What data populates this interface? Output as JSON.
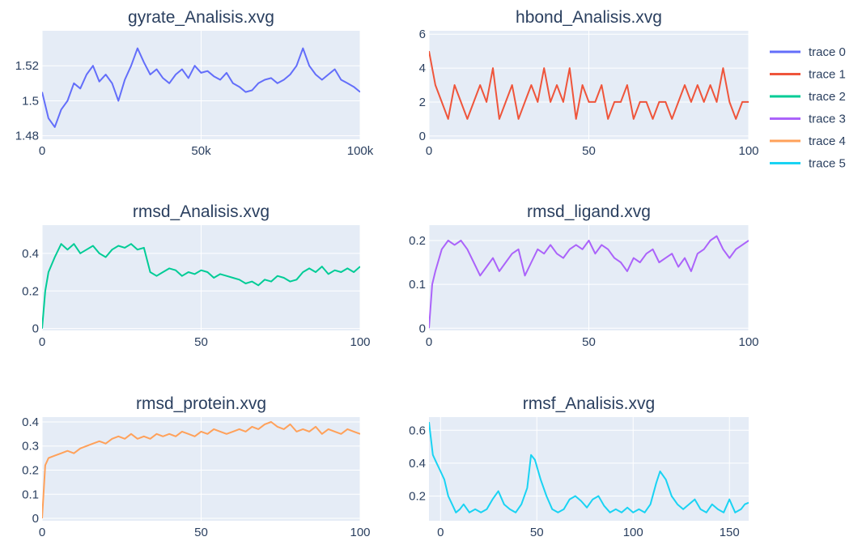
{
  "chart_data": [
    {
      "type": "line",
      "title": "gyrate_Analisis.xvg",
      "series_name": "trace 0",
      "color": "#636efa",
      "xlim": [
        0,
        100000
      ],
      "ylim": [
        1.478,
        1.54
      ],
      "xticks": [
        0,
        50000,
        100000
      ],
      "xtick_labels": [
        "0",
        "50k",
        "100k"
      ],
      "yticks": [
        1.48,
        1.5,
        1.52
      ],
      "ytick_labels": [
        "1.48",
        "1.5",
        "1.52"
      ],
      "x": [
        0,
        2000,
        4000,
        6000,
        8000,
        10000,
        12000,
        14000,
        16000,
        18000,
        20000,
        22000,
        24000,
        26000,
        28000,
        30000,
        32000,
        34000,
        36000,
        38000,
        40000,
        42000,
        44000,
        46000,
        48000,
        50000,
        52000,
        54000,
        56000,
        58000,
        60000,
        62000,
        64000,
        66000,
        68000,
        70000,
        72000,
        74000,
        76000,
        78000,
        80000,
        82000,
        84000,
        86000,
        88000,
        90000,
        92000,
        94000,
        96000,
        98000,
        100000
      ],
      "y": [
        1.505,
        1.49,
        1.485,
        1.495,
        1.5,
        1.51,
        1.507,
        1.515,
        1.52,
        1.511,
        1.515,
        1.51,
        1.5,
        1.512,
        1.52,
        1.53,
        1.522,
        1.515,
        1.518,
        1.513,
        1.51,
        1.515,
        1.518,
        1.513,
        1.52,
        1.516,
        1.517,
        1.514,
        1.512,
        1.516,
        1.51,
        1.508,
        1.505,
        1.506,
        1.51,
        1.512,
        1.513,
        1.51,
        1.512,
        1.515,
        1.52,
        1.53,
        1.52,
        1.515,
        1.512,
        1.515,
        1.518,
        1.512,
        1.51,
        1.508,
        1.505
      ]
    },
    {
      "type": "line",
      "title": "hbond_Analisis.xvg",
      "series_name": "trace 1",
      "color": "#ef553b",
      "xlim": [
        0,
        100
      ],
      "ylim": [
        -0.2,
        6.2
      ],
      "xticks": [
        0,
        50,
        100
      ],
      "xtick_labels": [
        "0",
        "50",
        "100"
      ],
      "yticks": [
        0,
        2,
        4,
        6
      ],
      "ytick_labels": [
        "0",
        "2",
        "4",
        "6"
      ],
      "x": [
        0,
        2,
        4,
        6,
        8,
        10,
        12,
        14,
        16,
        18,
        20,
        22,
        24,
        26,
        28,
        30,
        32,
        34,
        36,
        38,
        40,
        42,
        44,
        46,
        48,
        50,
        52,
        54,
        56,
        58,
        60,
        62,
        64,
        66,
        68,
        70,
        72,
        74,
        76,
        78,
        80,
        82,
        84,
        86,
        88,
        90,
        92,
        94,
        96,
        98,
        100
      ],
      "y": [
        5,
        3,
        2,
        1,
        3,
        2,
        1,
        2,
        3,
        2,
        4,
        1,
        2,
        3,
        1,
        2,
        3,
        2,
        4,
        2,
        3,
        2,
        4,
        1,
        3,
        2,
        2,
        3,
        1,
        2,
        2,
        3,
        1,
        2,
        2,
        1,
        2,
        2,
        1,
        2,
        3,
        2,
        3,
        2,
        3,
        2,
        4,
        2,
        1,
        2,
        2
      ]
    },
    {
      "type": "line",
      "title": "rmsd_Analisis.xvg",
      "series_name": "trace 2",
      "color": "#00cc96",
      "xlim": [
        0,
        100
      ],
      "ylim": [
        -0.01,
        0.55
      ],
      "xticks": [
        0,
        50,
        100
      ],
      "xtick_labels": [
        "0",
        "50",
        "100"
      ],
      "yticks": [
        0,
        0.2,
        0.4
      ],
      "ytick_labels": [
        "0",
        "0.2",
        "0.4"
      ],
      "x": [
        0,
        1,
        2,
        4,
        6,
        8,
        10,
        12,
        14,
        16,
        18,
        20,
        22,
        24,
        26,
        28,
        30,
        32,
        34,
        36,
        38,
        40,
        42,
        44,
        46,
        48,
        50,
        52,
        54,
        56,
        58,
        60,
        62,
        64,
        66,
        68,
        70,
        72,
        74,
        76,
        78,
        80,
        82,
        84,
        86,
        88,
        90,
        92,
        94,
        96,
        98,
        100
      ],
      "y": [
        0,
        0.2,
        0.3,
        0.38,
        0.45,
        0.42,
        0.45,
        0.4,
        0.42,
        0.44,
        0.4,
        0.38,
        0.42,
        0.44,
        0.43,
        0.45,
        0.42,
        0.43,
        0.3,
        0.28,
        0.3,
        0.32,
        0.31,
        0.28,
        0.3,
        0.29,
        0.31,
        0.3,
        0.27,
        0.29,
        0.28,
        0.27,
        0.26,
        0.24,
        0.25,
        0.23,
        0.26,
        0.25,
        0.28,
        0.27,
        0.25,
        0.26,
        0.3,
        0.32,
        0.3,
        0.33,
        0.29,
        0.31,
        0.3,
        0.32,
        0.3,
        0.33
      ]
    },
    {
      "type": "line",
      "title": "rmsd_ligand.xvg",
      "series_name": "trace 3",
      "color": "#ab63fa",
      "xlim": [
        0,
        100
      ],
      "ylim": [
        -0.005,
        0.235
      ],
      "xticks": [
        0,
        50,
        100
      ],
      "xtick_labels": [
        "0",
        "50",
        "100"
      ],
      "yticks": [
        0,
        0.1,
        0.2
      ],
      "ytick_labels": [
        "0",
        "0.1",
        "0.2"
      ],
      "x": [
        0,
        1,
        2,
        4,
        6,
        8,
        10,
        12,
        14,
        16,
        18,
        20,
        22,
        24,
        26,
        28,
        30,
        32,
        34,
        36,
        38,
        40,
        42,
        44,
        46,
        48,
        50,
        52,
        54,
        56,
        58,
        60,
        62,
        64,
        66,
        68,
        70,
        72,
        74,
        76,
        78,
        80,
        82,
        84,
        86,
        88,
        90,
        92,
        94,
        96,
        98,
        100
      ],
      "y": [
        0,
        0.1,
        0.13,
        0.18,
        0.2,
        0.19,
        0.2,
        0.18,
        0.15,
        0.12,
        0.14,
        0.16,
        0.13,
        0.15,
        0.17,
        0.18,
        0.12,
        0.15,
        0.18,
        0.17,
        0.19,
        0.17,
        0.16,
        0.18,
        0.19,
        0.18,
        0.2,
        0.17,
        0.19,
        0.18,
        0.16,
        0.15,
        0.13,
        0.16,
        0.15,
        0.17,
        0.18,
        0.15,
        0.16,
        0.17,
        0.14,
        0.16,
        0.13,
        0.17,
        0.18,
        0.2,
        0.21,
        0.18,
        0.16,
        0.18,
        0.19,
        0.2
      ]
    },
    {
      "type": "line",
      "title": "rmsd_protein.xvg",
      "series_name": "trace 4",
      "color": "#ffa15a",
      "xlim": [
        0,
        100
      ],
      "ylim": [
        -0.01,
        0.42
      ],
      "xticks": [
        0,
        50,
        100
      ],
      "xtick_labels": [
        "0",
        "50",
        "100"
      ],
      "yticks": [
        0,
        0.1,
        0.2,
        0.3,
        0.4
      ],
      "ytick_labels": [
        "0",
        "0.1",
        "0.2",
        "0.3",
        "0.4"
      ],
      "x": [
        0,
        1,
        2,
        4,
        6,
        8,
        10,
        12,
        14,
        16,
        18,
        20,
        22,
        24,
        26,
        28,
        30,
        32,
        34,
        36,
        38,
        40,
        42,
        44,
        46,
        48,
        50,
        52,
        54,
        56,
        58,
        60,
        62,
        64,
        66,
        68,
        70,
        72,
        74,
        76,
        78,
        80,
        82,
        84,
        86,
        88,
        90,
        92,
        94,
        96,
        98,
        100
      ],
      "y": [
        0,
        0.22,
        0.25,
        0.26,
        0.27,
        0.28,
        0.27,
        0.29,
        0.3,
        0.31,
        0.32,
        0.31,
        0.33,
        0.34,
        0.33,
        0.35,
        0.33,
        0.34,
        0.33,
        0.35,
        0.34,
        0.35,
        0.34,
        0.36,
        0.35,
        0.34,
        0.36,
        0.35,
        0.37,
        0.36,
        0.35,
        0.36,
        0.37,
        0.36,
        0.38,
        0.37,
        0.39,
        0.4,
        0.38,
        0.37,
        0.39,
        0.36,
        0.37,
        0.36,
        0.38,
        0.35,
        0.37,
        0.36,
        0.35,
        0.37,
        0.36,
        0.35
      ]
    },
    {
      "type": "line",
      "title": "rmsf_Analisis.xvg",
      "series_name": "trace 5",
      "color": "#19d3f3",
      "xlim": [
        -6,
        160
      ],
      "ylim": [
        0.05,
        0.68
      ],
      "xticks": [
        0,
        50,
        100,
        150
      ],
      "xtick_labels": [
        "0",
        "50",
        "100",
        "150"
      ],
      "yticks": [
        0.2,
        0.4,
        0.6
      ],
      "ytick_labels": [
        "0.2",
        "0.4",
        "0.6"
      ],
      "x": [
        -6,
        -4,
        -2,
        0,
        2,
        4,
        6,
        8,
        10,
        12,
        15,
        18,
        21,
        24,
        27,
        30,
        33,
        36,
        39,
        42,
        45,
        47,
        49,
        52,
        55,
        58,
        61,
        64,
        67,
        70,
        73,
        76,
        79,
        82,
        85,
        88,
        91,
        94,
        97,
        100,
        103,
        106,
        109,
        112,
        114,
        117,
        120,
        123,
        126,
        129,
        132,
        135,
        138,
        141,
        144,
        147,
        150,
        153,
        156,
        158,
        160
      ],
      "y": [
        0.65,
        0.45,
        0.4,
        0.35,
        0.3,
        0.2,
        0.15,
        0.1,
        0.12,
        0.15,
        0.1,
        0.12,
        0.1,
        0.12,
        0.18,
        0.23,
        0.15,
        0.12,
        0.1,
        0.15,
        0.25,
        0.45,
        0.42,
        0.3,
        0.2,
        0.12,
        0.1,
        0.12,
        0.18,
        0.2,
        0.17,
        0.13,
        0.18,
        0.2,
        0.14,
        0.1,
        0.12,
        0.1,
        0.13,
        0.1,
        0.12,
        0.1,
        0.15,
        0.28,
        0.35,
        0.3,
        0.2,
        0.15,
        0.12,
        0.15,
        0.18,
        0.12,
        0.1,
        0.15,
        0.12,
        0.1,
        0.18,
        0.1,
        0.12,
        0.15,
        0.16
      ]
    }
  ]
}
